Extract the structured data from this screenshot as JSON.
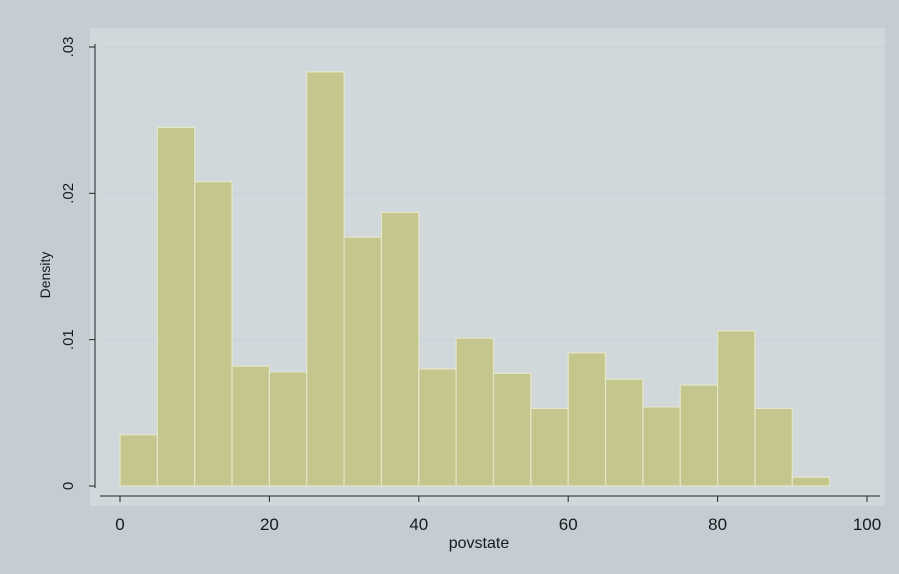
{
  "chart_data": {
    "type": "bar",
    "title": "",
    "xlabel": "povstate",
    "ylabel": "Density",
    "xlim": [
      0,
      100
    ],
    "ylim": [
      0,
      0.03
    ],
    "x_ticks": [
      {
        "value": 0,
        "label": "0"
      },
      {
        "value": 20,
        "label": "20"
      },
      {
        "value": 40,
        "label": "40"
      },
      {
        "value": 60,
        "label": "60"
      },
      {
        "value": 80,
        "label": "80"
      },
      {
        "value": 100,
        "label": "100"
      }
    ],
    "y_ticks": [
      {
        "value": 0,
        "label": "0"
      },
      {
        "value": 0.01,
        "label": ".01"
      },
      {
        "value": 0.02,
        "label": ".02"
      },
      {
        "value": 0.03,
        "label": ".03"
      }
    ],
    "bins": [
      {
        "x0": 0,
        "x1": 5,
        "value": 0.0035
      },
      {
        "x0": 5,
        "x1": 10,
        "value": 0.0245
      },
      {
        "x0": 10,
        "x1": 15,
        "value": 0.0208
      },
      {
        "x0": 15,
        "x1": 20,
        "value": 0.0082
      },
      {
        "x0": 20,
        "x1": 25,
        "value": 0.0078
      },
      {
        "x0": 25,
        "x1": 30,
        "value": 0.0283
      },
      {
        "x0": 30,
        "x1": 35,
        "value": 0.017
      },
      {
        "x0": 35,
        "x1": 40,
        "value": 0.0187
      },
      {
        "x0": 40,
        "x1": 45,
        "value": 0.008
      },
      {
        "x0": 45,
        "x1": 50,
        "value": 0.0101
      },
      {
        "x0": 50,
        "x1": 55,
        "value": 0.0077
      },
      {
        "x0": 55,
        "x1": 60,
        "value": 0.0053
      },
      {
        "x0": 60,
        "x1": 65,
        "value": 0.0091
      },
      {
        "x0": 65,
        "x1": 70,
        "value": 0.0073
      },
      {
        "x0": 70,
        "x1": 75,
        "value": 0.0054
      },
      {
        "x0": 75,
        "x1": 80,
        "value": 0.0069
      },
      {
        "x0": 80,
        "x1": 85,
        "value": 0.0106
      },
      {
        "x0": 85,
        "x1": 90,
        "value": 0.0053
      },
      {
        "x0": 90,
        "x1": 95,
        "value": 0.0006
      }
    ],
    "grid": true,
    "legend": "none",
    "colors": {
      "bar_fill": "#c5c68e",
      "bar_edge": "#e4e6c8",
      "plot_bg": "#d0d8dc",
      "outer_bg": "#c3cdd3",
      "grid": "#c7d0d5",
      "axis": "#222222"
    }
  }
}
